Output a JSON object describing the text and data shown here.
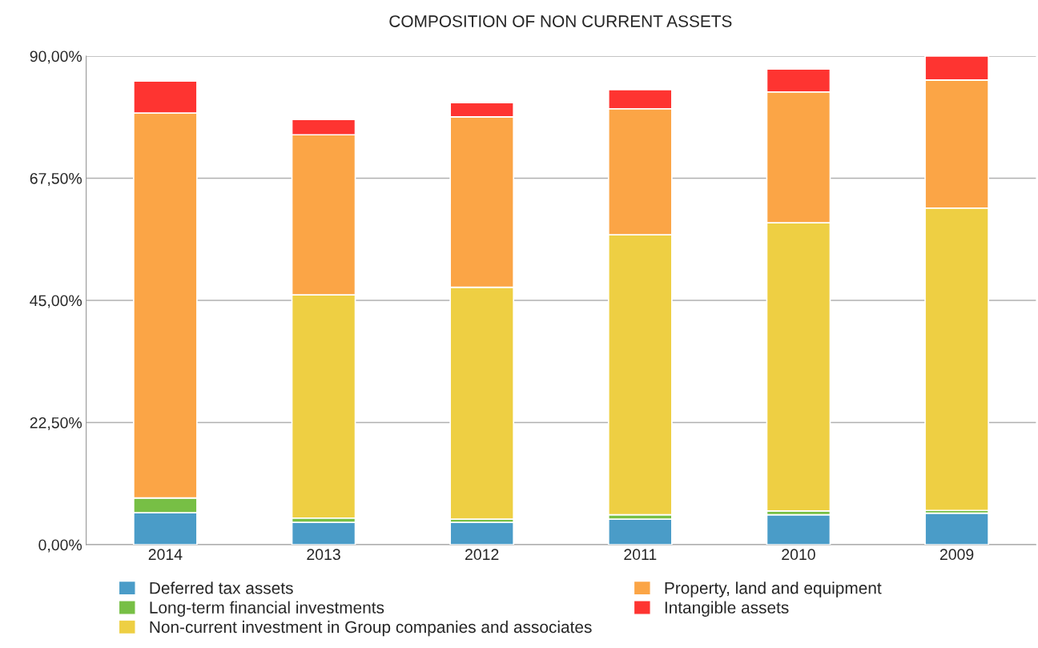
{
  "chart_data": {
    "type": "bar",
    "title": "COMPOSITION OF NON CURRENT ASSETS",
    "stacked": true,
    "categories": [
      "2014",
      "2013",
      "2012",
      "2011",
      "2010",
      "2009"
    ],
    "series": [
      {
        "name": "Deferred tax assets",
        "color": "#4a9cc8",
        "values": [
          5.9,
          4.1,
          4.1,
          4.7,
          5.5,
          5.8
        ]
      },
      {
        "name": "Long-term financial investments",
        "color": "#77bf45",
        "values": [
          2.7,
          0.8,
          0.6,
          0.8,
          0.7,
          0.5
        ]
      },
      {
        "name": "Non-current investment in Group companies and associates",
        "color": "#eecf43",
        "values": [
          0,
          41.1,
          42.7,
          51.6,
          53.1,
          55.7
        ]
      },
      {
        "name": "Property, land and equipment",
        "color": "#fba546",
        "values": [
          70.9,
          29.5,
          31.4,
          23.2,
          24.1,
          23.6
        ]
      },
      {
        "name": "Intangible assets",
        "color": "#fe3431",
        "values": [
          5.9,
          2.8,
          2.6,
          3.5,
          4.2,
          4.4
        ]
      }
    ],
    "ylim": [
      0,
      90
    ],
    "yticks": [
      {
        "value": 0,
        "label": "0,00%"
      },
      {
        "value": 22.5,
        "label": "22,50%"
      },
      {
        "value": 45,
        "label": "45,00%"
      },
      {
        "value": 67.5,
        "label": "67,50%"
      },
      {
        "value": 90,
        "label": "90,00%"
      }
    ],
    "grid": "y",
    "legend": "bottom"
  }
}
